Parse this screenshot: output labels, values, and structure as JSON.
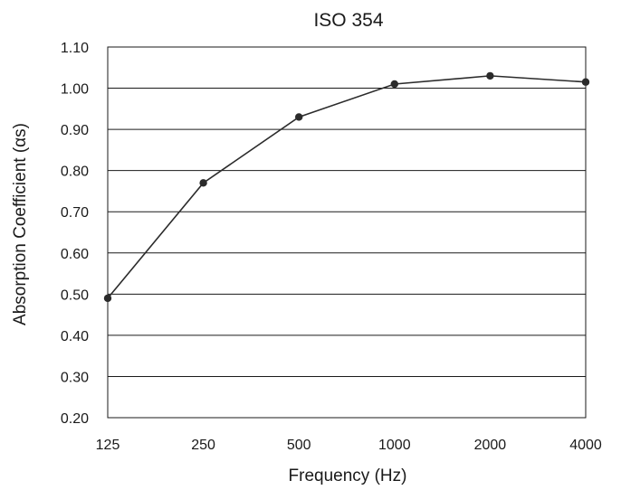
{
  "chart_data": {
    "type": "line",
    "title": "ISO 354",
    "xlabel": "Frequency (Hz)",
    "ylabel": "Absorption Coefficient (αs)",
    "categories": [
      "125",
      "250",
      "500",
      "1000",
      "2000",
      "4000"
    ],
    "series": [
      {
        "values": [
          0.49,
          0.77,
          0.93,
          1.01,
          1.03,
          1.015
        ]
      }
    ],
    "ylim": [
      0.2,
      1.1
    ],
    "yticks": [
      "1.10",
      "1.00",
      "0.90",
      "0.80",
      "0.70",
      "0.60",
      "0.50",
      "0.40",
      "0.30",
      "0.20"
    ],
    "grid": "horizontal",
    "legend": "none",
    "colors": {
      "line": "#2b2b2b",
      "grid": "#1a1a1a"
    }
  }
}
